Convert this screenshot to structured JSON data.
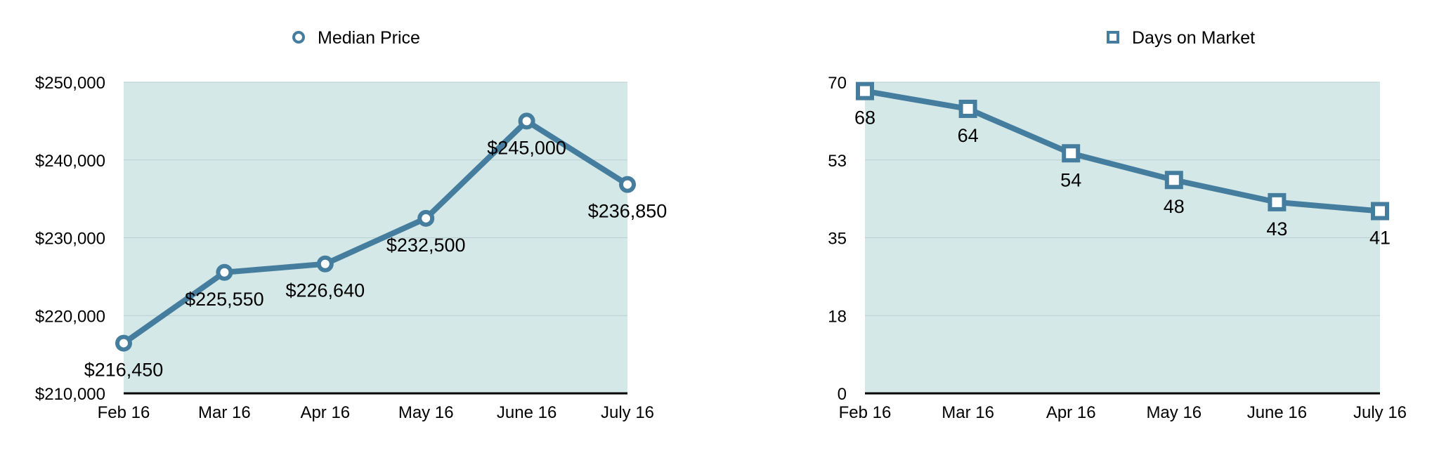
{
  "theme": {
    "series_color": "#457d9f",
    "plot_background": "#d5e8e8",
    "gridline_color": "#b8cfcf",
    "axis_color": "#000000"
  },
  "chart_data": [
    {
      "type": "line",
      "categories": [
        "Feb 16",
        "Mar 16",
        "Apr 16",
        "May 16",
        "June 16",
        "July 16"
      ],
      "series": [
        {
          "name": "Median Price",
          "marker": "circle",
          "values": [
            216450,
            225550,
            226640,
            232500,
            245000,
            236850
          ]
        }
      ],
      "data_labels": [
        "$216,450",
        "$225,550",
        "$226,640",
        "$232,500",
        "$245,000",
        "$236,850"
      ],
      "ylim": [
        210000,
        250000
      ],
      "yticks": [
        210000,
        220000,
        230000,
        240000,
        250000
      ],
      "ytick_labels": [
        "$210,000",
        "$220,000",
        "$230,000",
        "$240,000",
        "$250,000"
      ],
      "grid": true,
      "legend": "top-center"
    },
    {
      "type": "line",
      "categories": [
        "Feb 16",
        "Mar 16",
        "Apr 16",
        "May 16",
        "June 16",
        "July 16"
      ],
      "series": [
        {
          "name": "Days on Market",
          "marker": "square",
          "values": [
            68,
            64,
            54,
            48,
            43,
            41
          ]
        }
      ],
      "data_labels": [
        "68",
        "64",
        "54",
        "48",
        "43",
        "41"
      ],
      "ylim": [
        0,
        70
      ],
      "yticks": [
        0,
        17.5,
        35,
        52.5,
        70
      ],
      "ytick_labels": [
        "0",
        "18",
        "35",
        "53",
        "70"
      ],
      "grid": true,
      "legend": "top-center"
    }
  ]
}
